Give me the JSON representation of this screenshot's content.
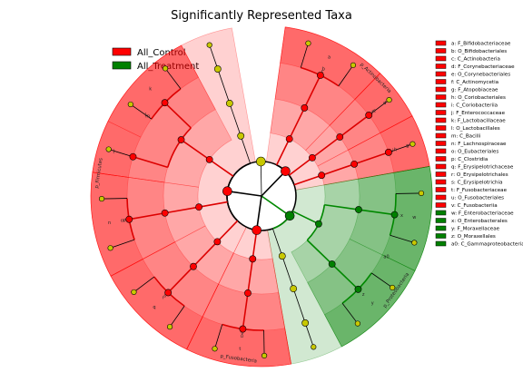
{
  "title": "Significantly Represented Taxa",
  "colors": {
    "control": "#ff0000",
    "treatment": "#008000",
    "nonsignificant": "#c8c800",
    "branch_control": "#dd0000",
    "branch_treatment": "#008800",
    "branch_default": "#000000"
  },
  "legend": [
    {
      "label": "All_Control",
      "group": "control"
    },
    {
      "label": "All_Treatment",
      "group": "treatment"
    }
  ],
  "chart_data": {
    "type": "cladogram",
    "groups": [
      "All_Control",
      "All_Treatment"
    ],
    "clades": [
      {
        "letter": "a",
        "name": "F_Bifidobacteriaceae",
        "group": "control"
      },
      {
        "letter": "b",
        "name": "O_Bifidobacteriales",
        "group": "control"
      },
      {
        "letter": "c",
        "name": "C_Actinobacteria",
        "group": "control"
      },
      {
        "letter": "d",
        "name": "F_Corynebacteriaceae",
        "group": "control"
      },
      {
        "letter": "e",
        "name": "O_Corynebacteriales",
        "group": "control"
      },
      {
        "letter": "f",
        "name": "C_Actinomycetia",
        "group": "control"
      },
      {
        "letter": "g",
        "name": "F_Atopobiaceae",
        "group": "control"
      },
      {
        "letter": "h",
        "name": "O_Coriobacteriales",
        "group": "control"
      },
      {
        "letter": "i",
        "name": "C_Coriobacteriia",
        "group": "control"
      },
      {
        "letter": "j",
        "name": "F_Enterococcaceae",
        "group": "control"
      },
      {
        "letter": "k",
        "name": "F_Lactobacillaceae",
        "group": "control"
      },
      {
        "letter": "l",
        "name": "O_Lactobacillales",
        "group": "control"
      },
      {
        "letter": "m",
        "name": "C_Bacilli",
        "group": "control"
      },
      {
        "letter": "n",
        "name": "F_Lachnospiraceae",
        "group": "control"
      },
      {
        "letter": "o",
        "name": "O_Eubacteriales",
        "group": "control"
      },
      {
        "letter": "p",
        "name": "C_Clostridia",
        "group": "control"
      },
      {
        "letter": "q",
        "name": "F_Erysipelotrichaceae",
        "group": "control"
      },
      {
        "letter": "r",
        "name": "O_Erysipelotrichales",
        "group": "control"
      },
      {
        "letter": "s",
        "name": "C_Erysipelotrichia",
        "group": "control"
      },
      {
        "letter": "t",
        "name": "F_Fusobacteriaceae",
        "group": "control"
      },
      {
        "letter": "u",
        "name": "O_Fusobacteriales",
        "group": "control"
      },
      {
        "letter": "v",
        "name": "C_Fusobacteriia",
        "group": "control"
      },
      {
        "letter": "w",
        "name": "F_Enterobacteriaceae",
        "group": "treatment"
      },
      {
        "letter": "x",
        "name": "O_Enterobacterales",
        "group": "treatment"
      },
      {
        "letter": "y",
        "name": "F_Moraxellaceae",
        "group": "treatment"
      },
      {
        "letter": "z",
        "name": "O_Moraxellales",
        "group": "treatment"
      },
      {
        "letter": "a0",
        "name": "C_Gammaproteobacteria",
        "group": "treatment"
      }
    ],
    "phyla": [
      {
        "name": "p_Actinobacteria",
        "group": "control"
      },
      {
        "name": "p_Firmicutes",
        "group": "control"
      },
      {
        "name": "p_Fusobacteria",
        "group": "control"
      },
      {
        "name": "p_Proteobacteria",
        "group": "treatment"
      }
    ]
  }
}
